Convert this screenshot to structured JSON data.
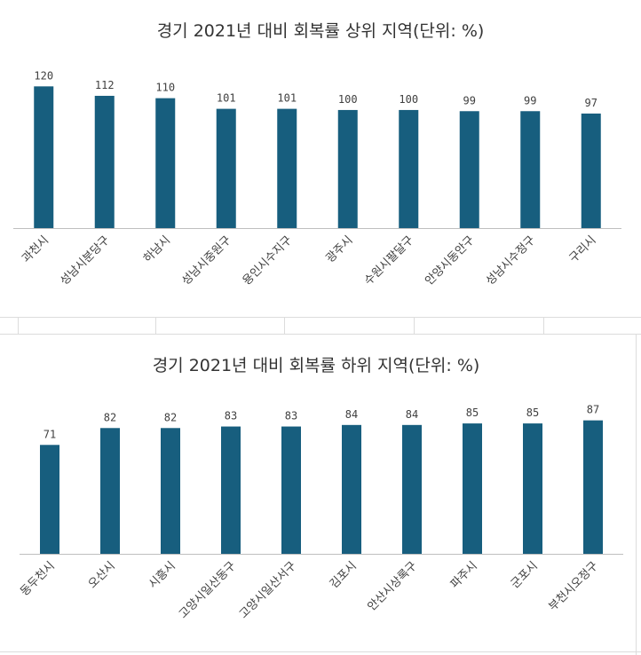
{
  "bar_color": "#175E7E",
  "chart_data": [
    {
      "type": "bar",
      "title": "경기 2021년 대비 회복률 상위 지역(단위: %)",
      "categories": [
        "과천시",
        "성남시분당구",
        "하남시",
        "성남시중원구",
        "용인시수지구",
        "광주시",
        "수원시팔달구",
        "안양시동안구",
        "성남시수정구",
        "구리시"
      ],
      "values": [
        120,
        112,
        110,
        101,
        101,
        100,
        100,
        99,
        99,
        97
      ],
      "ylim": [
        0,
        124
      ]
    },
    {
      "type": "bar",
      "title": "경기 2021년 대비 회복률 하위 지역(단위: %)",
      "categories": [
        "동두천시",
        "오산시",
        "시흥시",
        "고양시일산동구",
        "고양시일산서구",
        "김포시",
        "안산시상록구",
        "파주시",
        "군포시",
        "부천시오정구"
      ],
      "values": [
        71,
        82,
        82,
        83,
        83,
        84,
        84,
        85,
        85,
        87
      ],
      "ylim": [
        0,
        92
      ]
    }
  ]
}
